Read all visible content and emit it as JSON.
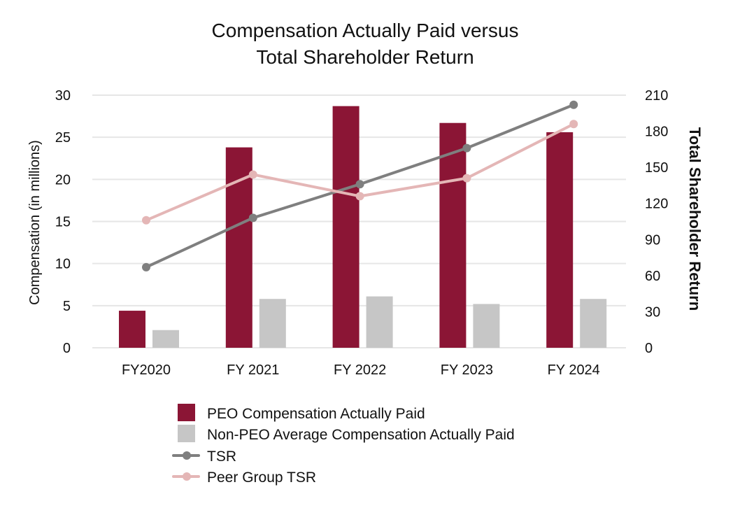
{
  "chart_data": {
    "type": "bar",
    "title_lines": [
      "Compensation Actually Paid versus",
      "Total Shareholder Return"
    ],
    "categories": [
      "FY2020",
      "FY 2021",
      "FY 2022",
      "FY 2023",
      "FY 2024"
    ],
    "ylabel": "Compensation (in millions)",
    "y2label": "Total Shareholder Return",
    "ylim": [
      0,
      30
    ],
    "y2lim": [
      0,
      210
    ],
    "yticks": [
      0,
      5,
      10,
      15,
      20,
      25,
      30
    ],
    "y2ticks": [
      0,
      30,
      60,
      90,
      120,
      150,
      180,
      210
    ],
    "grid": true,
    "legend_position": "bottom",
    "series": [
      {
        "name": "PEO Compensation Actually Paid",
        "kind": "bar",
        "axis": "left",
        "color": "#8B1535",
        "values": [
          4.4,
          23.8,
          28.7,
          26.7,
          25.6
        ]
      },
      {
        "name": "Non-PEO Average Compensation Actually Paid",
        "kind": "bar",
        "axis": "left",
        "color": "#C6C6C6",
        "values": [
          2.1,
          5.8,
          6.1,
          5.2,
          5.8
        ]
      },
      {
        "name": "TSR",
        "kind": "line",
        "axis": "right",
        "color": "#7F7F7F",
        "values": [
          67,
          108,
          136,
          166,
          202
        ]
      },
      {
        "name": "Peer Group TSR",
        "kind": "line",
        "axis": "right",
        "color": "#E4B6B6",
        "values": [
          106,
          144,
          126,
          141,
          186
        ]
      }
    ]
  }
}
